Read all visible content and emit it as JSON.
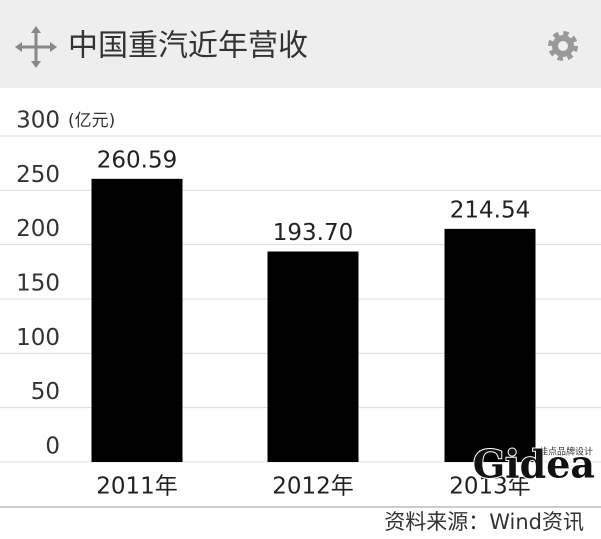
{
  "chart_data": {
    "type": "bar",
    "title": "中国重汽近年营收",
    "unit_label": "(亿元)",
    "categories": [
      "2011年",
      "2012年",
      "2013年"
    ],
    "values": [
      260.59,
      193.7,
      214.54
    ],
    "value_labels": [
      "260.59",
      "193.70",
      "214.54"
    ],
    "color": "#000000",
    "ylim": [
      0,
      300
    ],
    "yticks": [
      0,
      50,
      100,
      150,
      200,
      250,
      300
    ],
    "grid": true,
    "source": "资料来源：Wind资讯"
  },
  "watermark": {
    "text": "Gidea",
    "subtext": "佳点品牌设计"
  }
}
